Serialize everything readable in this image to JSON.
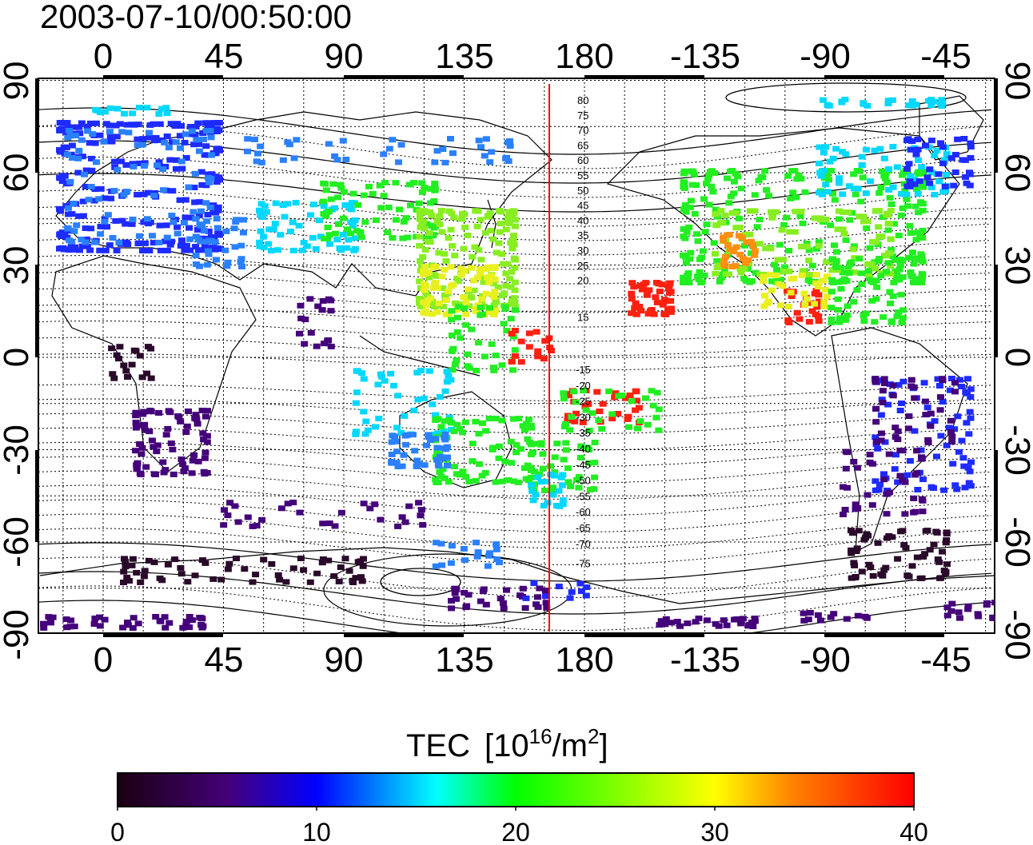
{
  "timestamp": "2003-07-10/00:50:00",
  "lon_ticks": [
    "0",
    "45",
    "90",
    "135",
    "180",
    "-135",
    "-90",
    "-45"
  ],
  "lat_ticks": [
    "90",
    "60",
    "30",
    "0",
    "-30",
    "-60",
    "-90"
  ],
  "colorbar": {
    "title": "TEC",
    "unit_base": "[10",
    "unit_exp": "16",
    "unit_mid": "/m",
    "unit_exp2": "2",
    "unit_end": "]",
    "ticks": [
      "0",
      "10",
      "20",
      "30",
      "40"
    ],
    "stops": [
      "#1a0010",
      "#44007a",
      "#0000ff",
      "#00ffff",
      "#00ff00",
      "#ffff00",
      "#ff8000",
      "#ff0000"
    ]
  },
  "geomag_labels_north": [
    "80",
    "75",
    "70",
    "65",
    "60",
    "55",
    "50",
    "45",
    "40",
    "35",
    "30",
    "25",
    "20",
    "15"
  ],
  "geomag_labels_south": [
    "-15",
    "-20",
    "-25",
    "-30",
    "-35",
    "-40",
    "-45",
    "-50",
    "-55",
    "-60",
    "-65",
    "-70",
    "-75"
  ],
  "terminator_longitude": 167
}
